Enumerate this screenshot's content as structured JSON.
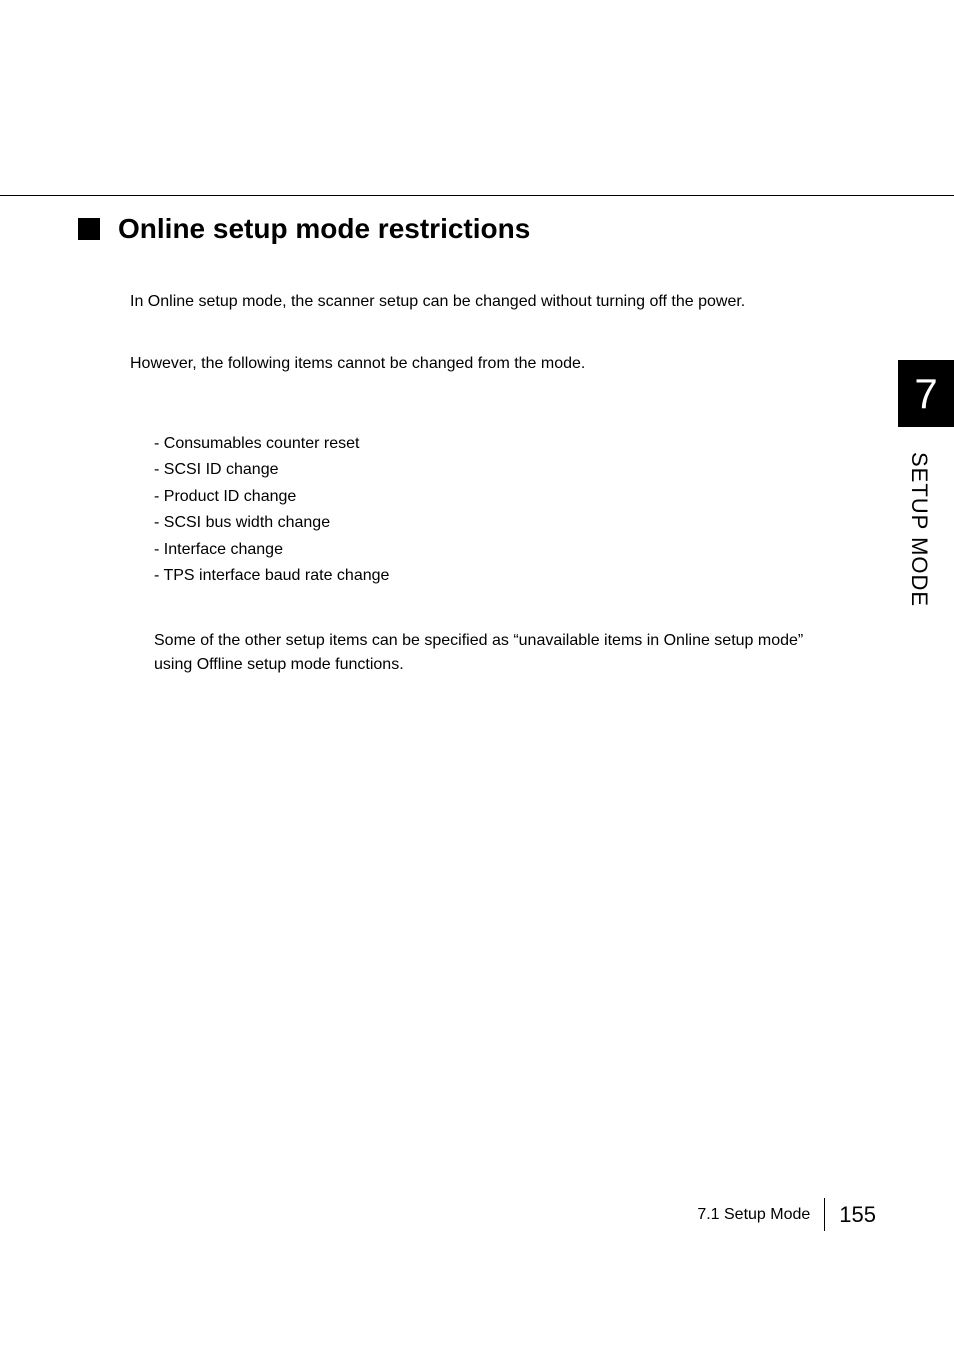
{
  "heading": {
    "text": "Online setup mode restrictions"
  },
  "paragraphs": {
    "intro": "In Online setup mode, the scanner setup can be changed without turning off the power.",
    "however": "However, the following items cannot be changed from the mode.",
    "footer_note": "Some of the other setup items can be specified as “unavailable items in Online setup mode” using Offline setup mode functions."
  },
  "list_items": [
    "- Consumables counter reset",
    "- SCSI ID change",
    "- Product ID change",
    "- SCSI bus width change",
    "- Interface change",
    "- TPS interface baud rate change"
  ],
  "side": {
    "chapter_number": "7",
    "label": "SETUP MODE"
  },
  "footer": {
    "section": "7.1  Setup Mode",
    "page": "155"
  },
  "colors": {
    "background": "#ffffff",
    "text": "#000000",
    "tab_bg": "#000000",
    "tab_text": "#ffffff"
  },
  "typography": {
    "heading_fontsize": 28,
    "body_fontsize": 16,
    "tab_number_fontsize": 42,
    "side_label_fontsize": 22,
    "page_number_fontsize": 22
  }
}
